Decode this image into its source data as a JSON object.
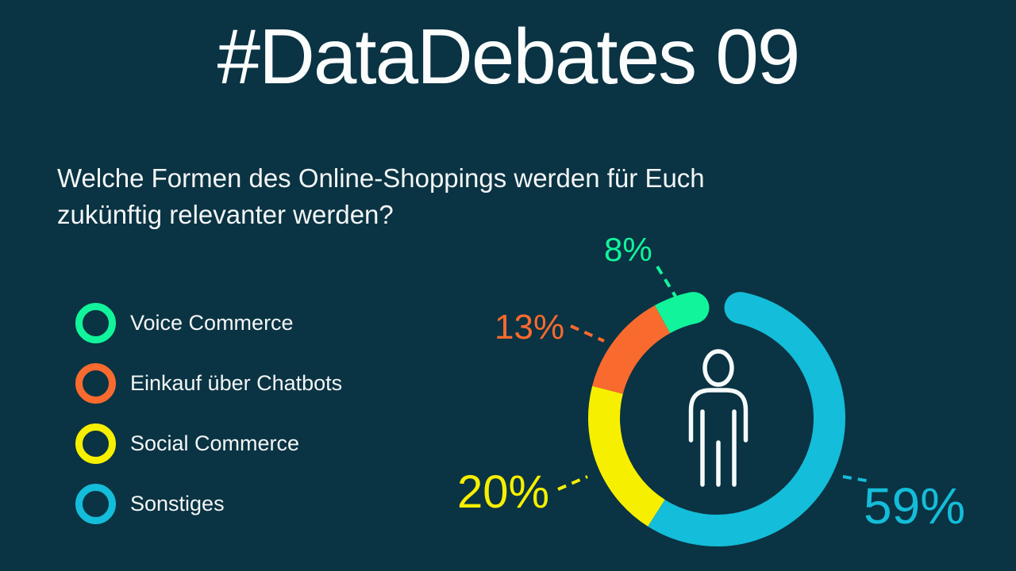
{
  "title": "#DataDebates 09",
  "question": {
    "lines": [
      "Welche Formen des Online-Shoppings werden für Euch",
      "zukünftig relevanter werden?"
    ]
  },
  "legend": {
    "items": [
      {
        "label": "Voice Commerce"
      },
      {
        "label": "Einkauf über Chatbots"
      },
      {
        "label": "Social Commerce"
      },
      {
        "label": "Sonstiges"
      }
    ]
  },
  "chart_data": {
    "type": "pie",
    "subtype": "donut",
    "title": "Welche Formen des Online-Shoppings werden für Euch zukünftig relevanter werden?",
    "categories": [
      "Voice Commerce",
      "Einkauf über Chatbots",
      "Social Commerce",
      "Sonstiges"
    ],
    "values": [
      8,
      13,
      20,
      59
    ],
    "labels": [
      "8%",
      "13%",
      "20%",
      "59%"
    ],
    "colors": [
      "#12f49b",
      "#f96a2e",
      "#f6ef00",
      "#14bdd9"
    ],
    "unit": "%",
    "order_clockwise_from_top": [
      "Sonstiges",
      "Social Commerce",
      "Einkauf über Chatbots",
      "Voice Commerce"
    ],
    "start_angle_deg": 0,
    "gap_trim_degrees": 12,
    "legend_position": "left",
    "center_icon": "person",
    "background_color": "#0a3343",
    "text_color": "#f3f6f6"
  }
}
